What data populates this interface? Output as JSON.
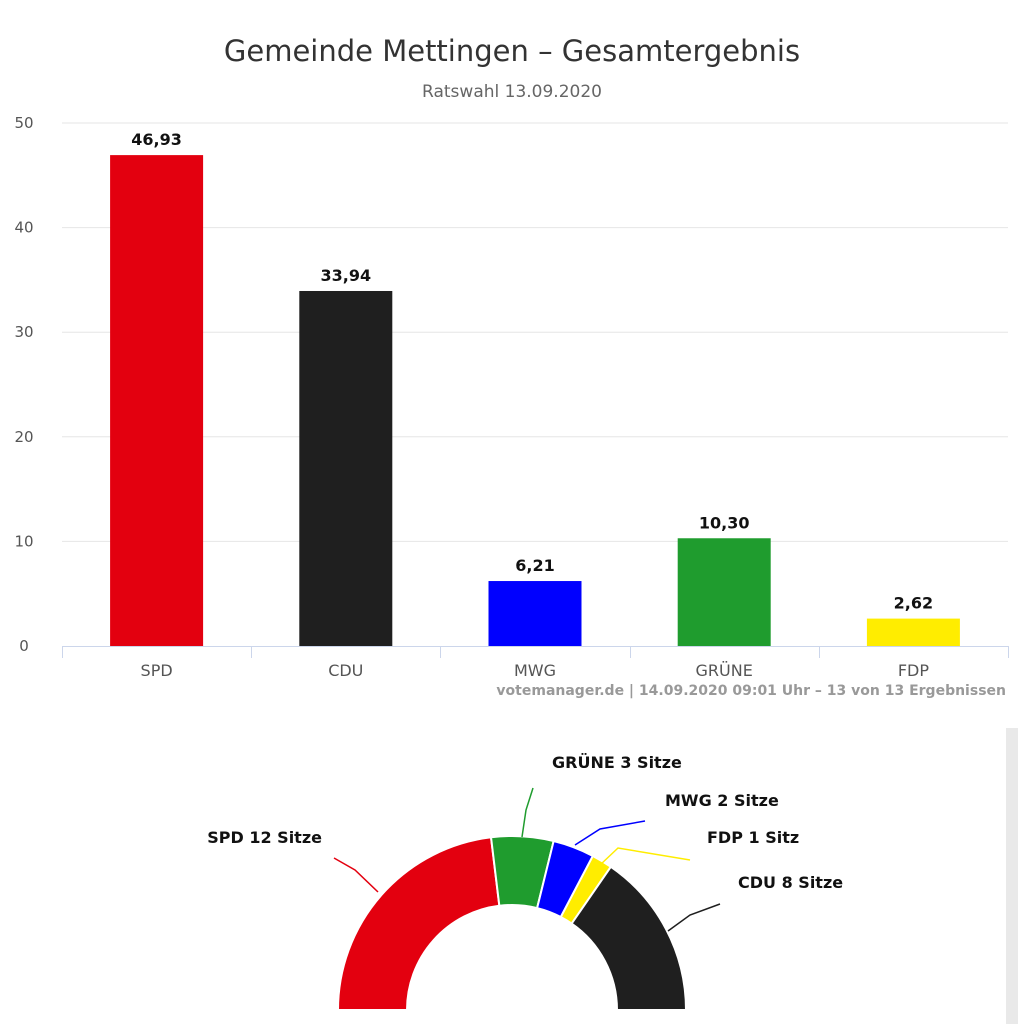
{
  "chart_data": [
    {
      "type": "bar",
      "title": "Gemeinde Mettingen – Gesamtergebnis",
      "subtitle": "Ratswahl 13.09.2020",
      "categories": [
        "SPD",
        "CDU",
        "MWG",
        "GRÜNE",
        "FDP"
      ],
      "values": [
        46.93,
        33.94,
        6.21,
        10.3,
        2.62
      ],
      "value_labels": [
        "46,93",
        "33,94",
        "6,21",
        "10,30",
        "2,62"
      ],
      "colors": [
        "#e3000f",
        "#1f1f1f",
        "#0000ff",
        "#1f9c2e",
        "#ffed00"
      ],
      "ylim": [
        0,
        50
      ],
      "yticks": [
        0,
        10,
        20,
        30,
        40,
        50
      ],
      "grid": true,
      "xlabel": "",
      "ylabel": "",
      "credits": "votemanager.de | 14.09.2020 09:01 Uhr – 13 von 13 Ergebnissen"
    },
    {
      "type": "pie",
      "variant": "semicircle",
      "categories": [
        "SPD",
        "GRÜNE",
        "MWG",
        "FDP",
        "CDU"
      ],
      "values": [
        12,
        3,
        2,
        1,
        8
      ],
      "labels": [
        "SPD 12 Sitze",
        "GRÜNE 3 Sitze",
        "MWG 2 Sitze",
        "FDP 1 Sitz",
        "CDU 8 Sitze"
      ],
      "colors": [
        "#e3000f",
        "#1f9c2e",
        "#0000ff",
        "#ffed00",
        "#1f1f1f"
      ]
    }
  ]
}
